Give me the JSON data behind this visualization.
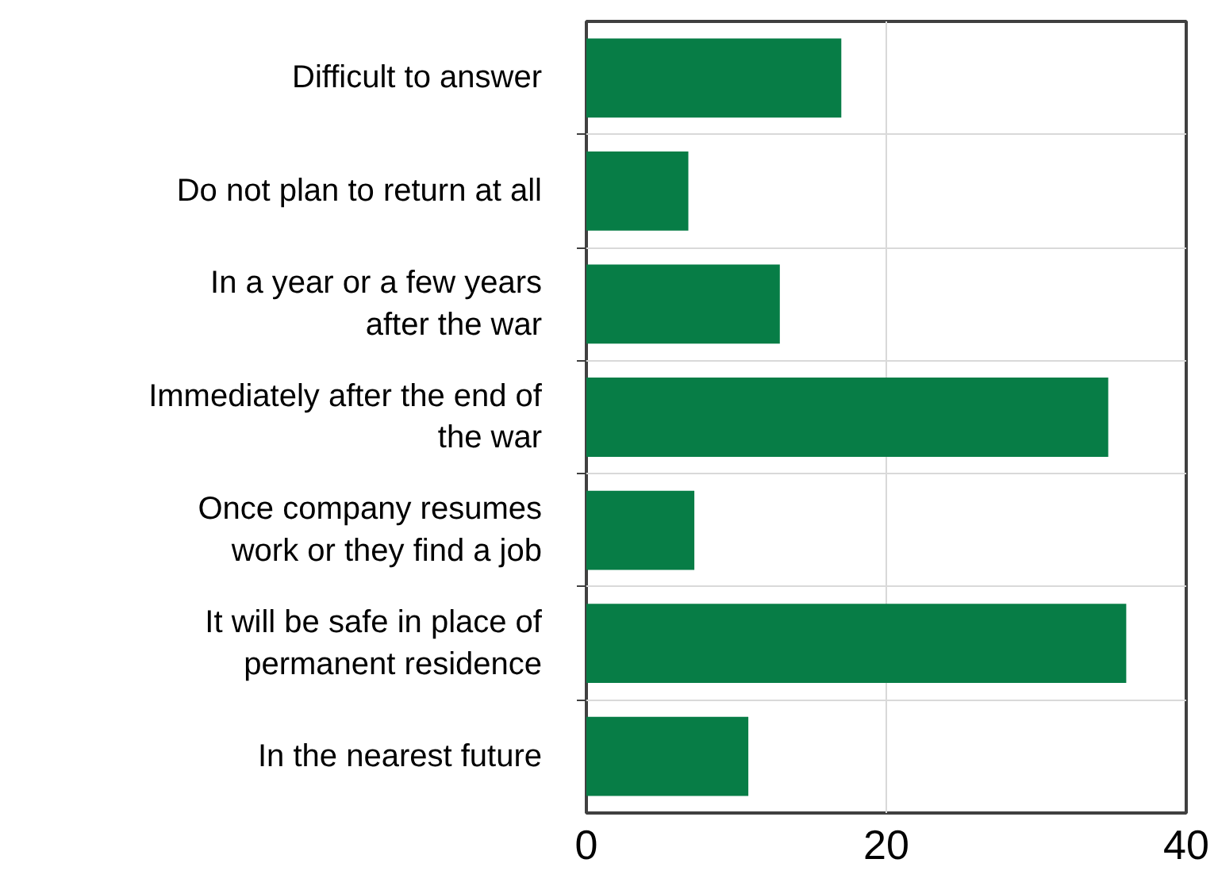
{
  "chart_data": {
    "type": "bar",
    "orientation": "horizontal",
    "categories": [
      "Difficult to answer",
      "Do not plan to return at all",
      "In a year or a few years\nafter the war",
      "Immediately after the end of\nthe war",
      "Once company resumes\nwork or they find a job",
      "It will be safe in place of\npermanent residence",
      "In the nearest future"
    ],
    "values": [
      17,
      6.8,
      12.9,
      34.8,
      7.2,
      36,
      10.8
    ],
    "color": "#077d46",
    "xlim": [
      0,
      40
    ],
    "xticks": [
      0,
      20,
      40
    ],
    "grid": true
  }
}
